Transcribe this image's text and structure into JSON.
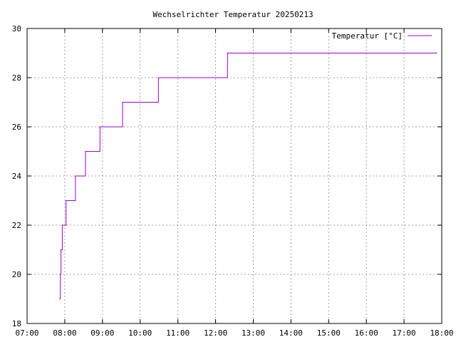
{
  "chart_data": {
    "type": "line",
    "title": "Wechselrichter Temperatur 20250213",
    "xlabel": "",
    "ylabel": "",
    "xlim": [
      "07:00",
      "18:00"
    ],
    "ylim": [
      18,
      30
    ],
    "x_ticks": [
      "07:00",
      "08:00",
      "09:00",
      "10:00",
      "11:00",
      "12:00",
      "13:00",
      "14:00",
      "15:00",
      "16:00",
      "17:00",
      "18:00"
    ],
    "y_ticks": [
      "18",
      "20",
      "22",
      "24",
      "26",
      "28",
      "30"
    ],
    "grid": true,
    "legend": "top-right",
    "line_style": "steps",
    "series": [
      {
        "name": "Temperatur [°C]",
        "color": "#9400d3",
        "points": [
          {
            "x": "07:52",
            "y": 19
          },
          {
            "x": "07:53",
            "y": 20
          },
          {
            "x": "07:54",
            "y": 21
          },
          {
            "x": "07:56",
            "y": 22
          },
          {
            "x": "08:02",
            "y": 23
          },
          {
            "x": "08:17",
            "y": 24
          },
          {
            "x": "08:33",
            "y": 25
          },
          {
            "x": "08:56",
            "y": 26
          },
          {
            "x": "09:32",
            "y": 27
          },
          {
            "x": "10:29",
            "y": 28
          },
          {
            "x": "12:19",
            "y": 29
          },
          {
            "x": "17:52",
            "y": 29
          }
        ]
      }
    ]
  }
}
